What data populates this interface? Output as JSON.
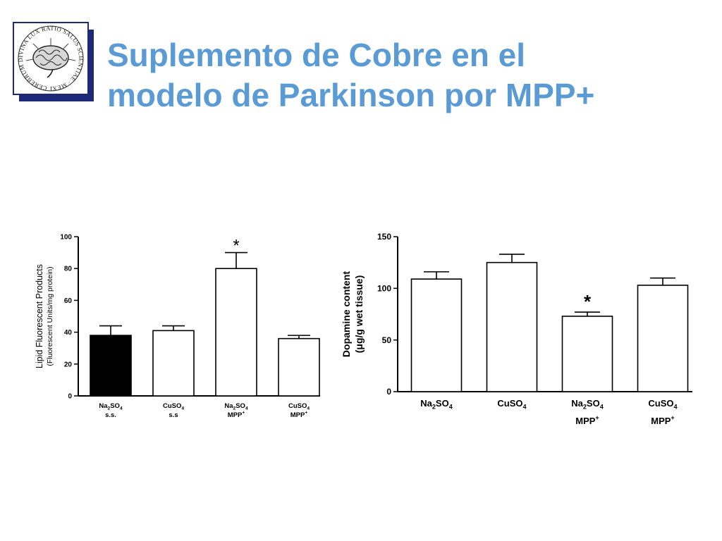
{
  "slide": {
    "title_line1": "Suplemento de Cobre en el",
    "title_line2": "modelo de Parkinson por MPP+"
  },
  "logo": {
    "text": "CEREBRUM DIVINA LUX RATIO SALUS SCIENTIAE · MEXICO ·"
  },
  "chart_data": [
    {
      "type": "bar",
      "title": "",
      "ylabel": "Lipid Fluorescent Products",
      "ylabel_sub": "(Fluorescent Units/mg protein)",
      "xlabel": "",
      "ylim": [
        0,
        100
      ],
      "yticks": [
        "0",
        "20",
        "40",
        "60",
        "80",
        "100"
      ],
      "categories": [
        {
          "chem": "Na",
          "chem_sub1": "2",
          "chem_mid": "SO",
          "chem_sub2": "4",
          "line2": "s.s.",
          "sup": ""
        },
        {
          "chem": "CuSO",
          "chem_sub1": "4",
          "chem_mid": "",
          "chem_sub2": "",
          "line2": "s.s",
          "sup": ""
        },
        {
          "chem": "Na",
          "chem_sub1": "2",
          "chem_mid": "SO",
          "chem_sub2": "4",
          "line2": "MPP",
          "sup": "+"
        },
        {
          "chem": "CuSO",
          "chem_sub1": "4",
          "chem_mid": "",
          "chem_sub2": "",
          "line2": "MPP",
          "sup": "+"
        }
      ],
      "values": [
        38,
        41,
        80,
        36
      ],
      "errors": [
        6,
        3,
        10,
        2
      ],
      "fills": [
        "#000000",
        "#ffffff",
        "#ffffff",
        "#ffffff"
      ],
      "significance": [
        "",
        "",
        "*",
        ""
      ],
      "grid": false,
      "legend": "none"
    },
    {
      "type": "bar",
      "title": "",
      "ylabel": "Dopamine content",
      "ylabel_sub": "(μg/g wet tissue)",
      "xlabel": "",
      "ylim": [
        0,
        150
      ],
      "yticks": [
        "0",
        "50",
        "100",
        "150"
      ],
      "categories": [
        {
          "chem": "Na",
          "chem_sub1": "2",
          "chem_mid": "SO",
          "chem_sub2": "4",
          "line2": "",
          "sup": ""
        },
        {
          "chem": "CuSO",
          "chem_sub1": "4",
          "chem_mid": "",
          "chem_sub2": "",
          "line2": "",
          "sup": ""
        },
        {
          "chem": "Na",
          "chem_sub1": "2",
          "chem_mid": "SO",
          "chem_sub2": "4",
          "line2": "MPP",
          "sup": "+"
        },
        {
          "chem": "CuSO",
          "chem_sub1": "4",
          "chem_mid": "",
          "chem_sub2": "",
          "line2": "MPP",
          "sup": "+"
        }
      ],
      "values": [
        109,
        125,
        73,
        103
      ],
      "errors": [
        7,
        8,
        4,
        7
      ],
      "fills": [
        "#ffffff",
        "#ffffff",
        "#ffffff",
        "#ffffff"
      ],
      "significance": [
        "",
        "",
        "*",
        ""
      ],
      "grid": false,
      "legend": "none"
    }
  ]
}
